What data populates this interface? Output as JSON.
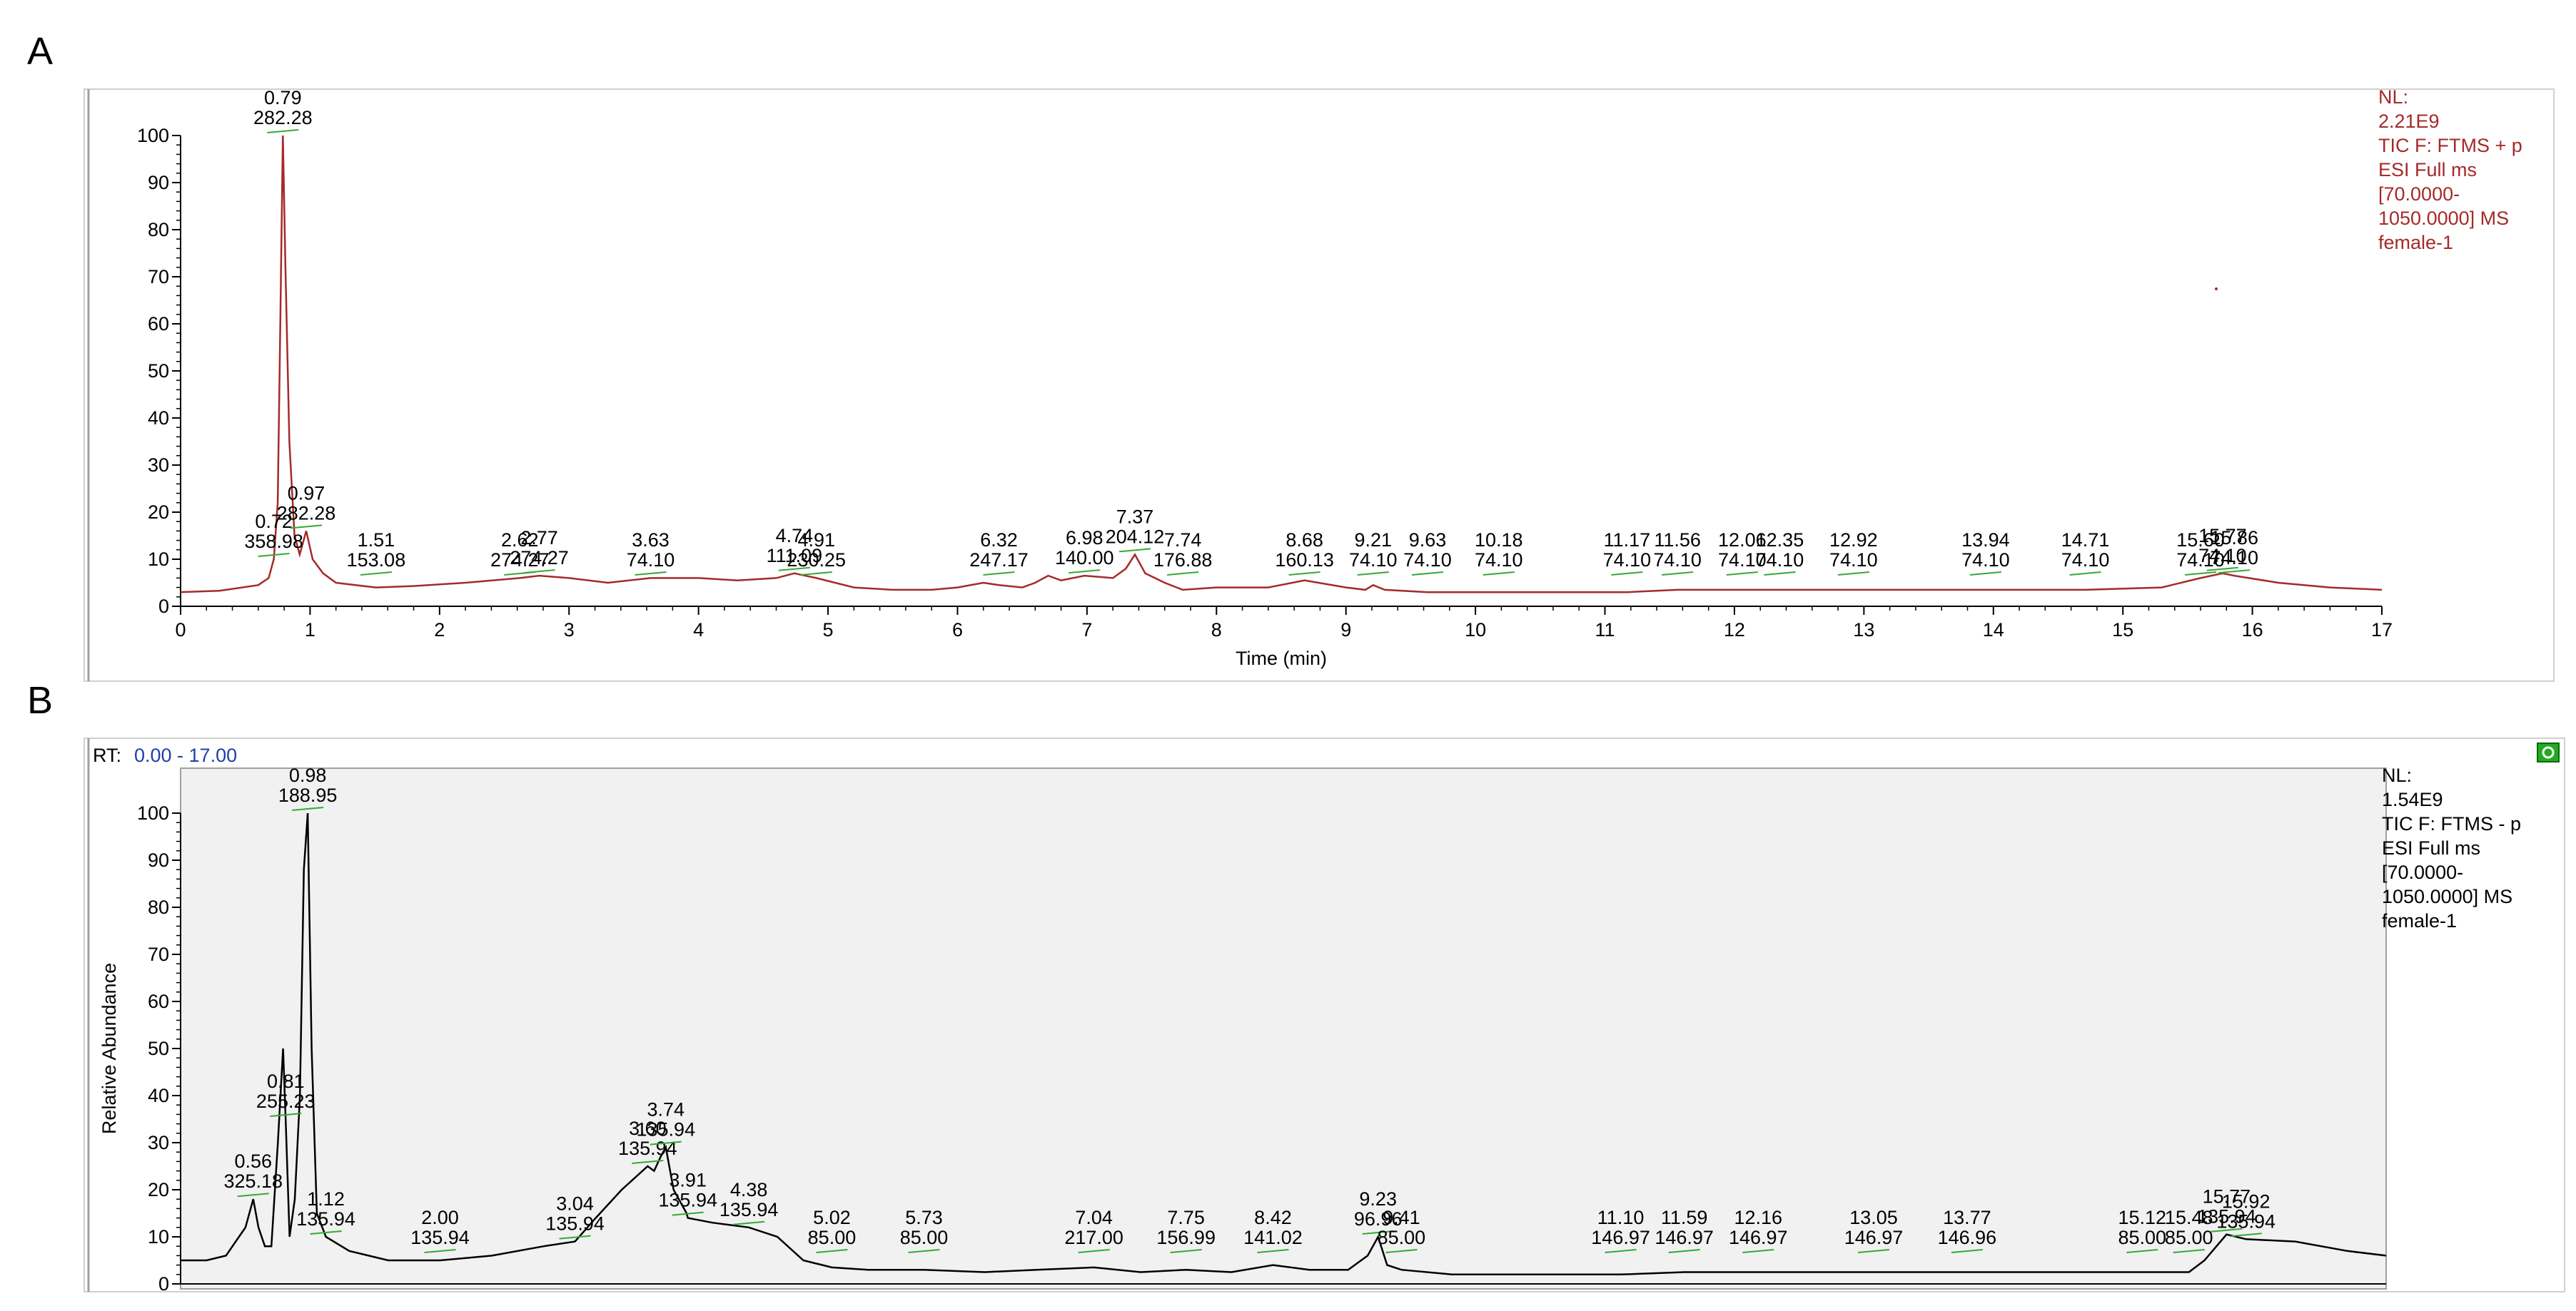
{
  "chart_data": [
    {
      "panel_letter": "A",
      "type": "line",
      "xlabel": "Time (min)",
      "ylabel": "",
      "xlim": [
        0,
        17
      ],
      "ylim": [
        0,
        100
      ],
      "x_ticks": [
        0,
        1,
        2,
        3,
        4,
        5,
        6,
        7,
        8,
        9,
        10,
        11,
        12,
        13,
        14,
        15,
        16,
        17
      ],
      "y_ticks": [
        0,
        10,
        20,
        30,
        40,
        50,
        60,
        70,
        80,
        90,
        100
      ],
      "line_color": "#a52a2a",
      "info": [
        "NL:",
        "2.21E9",
        "TIC F: FTMS + p",
        "ESI Full ms",
        "[70.0000-",
        "1050.0000]  MS",
        "female-1"
      ],
      "series": [
        {
          "values_x": [
            0,
            0.3,
            0.6,
            0.68,
            0.72,
            0.75,
            0.77,
            0.79,
            0.81,
            0.84,
            0.88,
            0.92,
            0.97,
            1.02,
            1.1,
            1.2,
            1.35,
            1.51,
            1.8,
            2.2,
            2.62,
            2.77,
            3.0,
            3.3,
            3.63,
            4.0,
            4.3,
            4.6,
            4.74,
            4.91,
            5.2,
            5.5,
            5.8,
            6.0,
            6.2,
            6.32,
            6.5,
            6.6,
            6.7,
            6.8,
            6.98,
            7.2,
            7.3,
            7.37,
            7.45,
            7.6,
            7.74,
            8.0,
            8.4,
            8.68,
            9.0,
            9.15,
            9.21,
            9.3,
            9.63,
            10.18,
            11.17,
            11.56,
            12.06,
            12.35,
            12.92,
            13.94,
            14.71,
            15.3,
            15.6,
            15.77,
            15.86,
            16.2,
            16.6,
            17
          ],
          "values_y": [
            3,
            3.3,
            4.5,
            6,
            10,
            22,
            60,
            100,
            72,
            35,
            15,
            11,
            16,
            10,
            7,
            5,
            4.5,
            4,
            4.3,
            5,
            6,
            6.5,
            6,
            5,
            6,
            6,
            5.5,
            6,
            7,
            6,
            4,
            3.5,
            3.5,
            4,
            5,
            4.5,
            4,
            5,
            6.5,
            5.5,
            6.5,
            6,
            8,
            11,
            7,
            5,
            3.5,
            4,
            4,
            5.5,
            4,
            3.5,
            4.5,
            3.5,
            3,
            3,
            3,
            3.5,
            3.5,
            3.5,
            3.5,
            3.5,
            3.5,
            4,
            6,
            7,
            6.5,
            5,
            4,
            3.5
          ]
        }
      ],
      "peak_labels": [
        {
          "rt": "0.72",
          "value": "358.98",
          "x": 0.72
        },
        {
          "rt": "0.79",
          "value": "282.28",
          "x": 0.79
        },
        {
          "rt": "0.97",
          "value": "282.28",
          "x": 0.97
        },
        {
          "rt": "1.51",
          "value": "153.08",
          "x": 1.51
        },
        {
          "rt": "2.62",
          "value": "274.27",
          "x": 2.62
        },
        {
          "rt": "2.77",
          "value": "274.27",
          "x": 2.77
        },
        {
          "rt": "3.63",
          "value": "74.10",
          "x": 3.63
        },
        {
          "rt": "4.74",
          "value": "111.09",
          "x": 4.74
        },
        {
          "rt": "4.91",
          "value": "230.25",
          "x": 4.91
        },
        {
          "rt": "6.32",
          "value": "247.17",
          "x": 6.32
        },
        {
          "rt": "6.98",
          "value": "140.00",
          "x": 6.98
        },
        {
          "rt": "7.37",
          "value": "204.12",
          "x": 7.37
        },
        {
          "rt": "7.74",
          "value": "176.88",
          "x": 7.74
        },
        {
          "rt": "8.68",
          "value": "160.13",
          "x": 8.68
        },
        {
          "rt": "9.21",
          "value": "74.10",
          "x": 9.21
        },
        {
          "rt": "9.63",
          "value": "74.10",
          "x": 9.63
        },
        {
          "rt": "10.18",
          "value": "74.10",
          "x": 10.18
        },
        {
          "rt": "11.17",
          "value": "74.10",
          "x": 11.17
        },
        {
          "rt": "11.56",
          "value": "74.10",
          "x": 11.56
        },
        {
          "rt": "12.06",
          "value": "74.10",
          "x": 12.06
        },
        {
          "rt": "12.35",
          "value": "74.10",
          "x": 12.35
        },
        {
          "rt": "12.92",
          "value": "74.10",
          "x": 12.92
        },
        {
          "rt": "13.94",
          "value": "74.10",
          "x": 13.94
        },
        {
          "rt": "14.71",
          "value": "74.10",
          "x": 14.71
        },
        {
          "rt": "15.60",
          "value": "74.10",
          "x": 15.6
        },
        {
          "rt": "15.77",
          "value": "74.10",
          "x": 15.77
        },
        {
          "rt": "15.86",
          "value": "74.10",
          "x": 15.86
        }
      ]
    },
    {
      "panel_letter": "B",
      "type": "line",
      "xlabel": "",
      "ylabel": "Relative Abundance",
      "xlim": [
        0,
        17
      ],
      "ylim": [
        0,
        100
      ],
      "y_ticks": [
        0,
        10,
        20,
        30,
        40,
        50,
        60,
        70,
        80,
        90,
        100
      ],
      "rt_label": "RT:",
      "rt_range": "0.00 - 17.00",
      "line_color": "#000000",
      "info": [
        "NL:",
        "1.54E9",
        "TIC F: FTMS - p",
        "ESI Full ms",
        "[70.0000-",
        "1050.0000]  MS",
        "female-1"
      ],
      "series": [
        {
          "values_x": [
            0,
            0.2,
            0.35,
            0.45,
            0.5,
            0.56,
            0.6,
            0.65,
            0.7,
            0.75,
            0.79,
            0.81,
            0.84,
            0.88,
            0.92,
            0.95,
            0.98,
            1.01,
            1.05,
            1.12,
            1.3,
            1.6,
            2.0,
            2.4,
            2.8,
            3.04,
            3.2,
            3.4,
            3.6,
            3.65,
            3.7,
            3.74,
            3.8,
            3.9,
            3.91,
            4.1,
            4.38,
            4.6,
            4.8,
            5.02,
            5.3,
            5.73,
            6.2,
            6.6,
            7.04,
            7.4,
            7.75,
            8.1,
            8.42,
            8.7,
            9.0,
            9.15,
            9.23,
            9.3,
            9.41,
            9.8,
            10.5,
            11.1,
            11.59,
            12.16,
            13.05,
            13.77,
            14.5,
            15.12,
            15.48,
            15.6,
            15.77,
            15.92,
            16.3,
            16.7,
            17
          ],
          "values_y": [
            5,
            5,
            6,
            10,
            12,
            18,
            12,
            8,
            8,
            30,
            50,
            35,
            10,
            18,
            40,
            88,
            100,
            50,
            15,
            10,
            7,
            5,
            5,
            6,
            8,
            9,
            14,
            20,
            25,
            24,
            27,
            29,
            20,
            15,
            14,
            13,
            12,
            10,
            5,
            3.5,
            3,
            3,
            2.5,
            3,
            3.5,
            2.5,
            3,
            2.5,
            4,
            3,
            3,
            6,
            10,
            4,
            3,
            2,
            2,
            2,
            2.5,
            2.5,
            2.5,
            2.5,
            2.5,
            2.5,
            2.5,
            5,
            10.5,
            9.5,
            9,
            7,
            6
          ]
        }
      ],
      "peak_labels": [
        {
          "rt": "0.56",
          "value": "325.18",
          "x": 0.56
        },
        {
          "rt": "0.81",
          "value": "255.23",
          "x": 0.81
        },
        {
          "rt": "0.98",
          "value": "188.95",
          "x": 0.98
        },
        {
          "rt": "1.12",
          "value": "135.94",
          "x": 1.12
        },
        {
          "rt": "2.00",
          "value": "135.94",
          "x": 2.0
        },
        {
          "rt": "3.04",
          "value": "135.94",
          "x": 3.04
        },
        {
          "rt": "3.60",
          "value": "135.94",
          "x": 3.6
        },
        {
          "rt": "3.74",
          "value": "135.94",
          "x": 3.74
        },
        {
          "rt": "3.91",
          "value": "135.94",
          "x": 3.91
        },
        {
          "rt": "4.38",
          "value": "135.94",
          "x": 4.38
        },
        {
          "rt": "5.02",
          "value": "85.00",
          "x": 5.02
        },
        {
          "rt": "5.73",
          "value": "85.00",
          "x": 5.73
        },
        {
          "rt": "7.04",
          "value": "217.00",
          "x": 7.04
        },
        {
          "rt": "7.75",
          "value": "156.99",
          "x": 7.75
        },
        {
          "rt": "8.42",
          "value": "141.02",
          "x": 8.42
        },
        {
          "rt": "9.23",
          "value": "96.96",
          "x": 9.23
        },
        {
          "rt": "9.41",
          "value": "85.00",
          "x": 9.41
        },
        {
          "rt": "11.10",
          "value": "146.97",
          "x": 11.1
        },
        {
          "rt": "11.59",
          "value": "146.97",
          "x": 11.59
        },
        {
          "rt": "12.16",
          "value": "146.97",
          "x": 12.16
        },
        {
          "rt": "13.05",
          "value": "146.97",
          "x": 13.05
        },
        {
          "rt": "13.77",
          "value": "146.96",
          "x": 13.77
        },
        {
          "rt": "15.12",
          "value": "85.00",
          "x": 15.12
        },
        {
          "rt": "15.48",
          "value": "85.00",
          "x": 15.48
        },
        {
          "rt": "15.77",
          "value": "135.94",
          "x": 15.77
        },
        {
          "rt": "15.92",
          "value": "135.94",
          "x": 15.92
        }
      ]
    }
  ]
}
